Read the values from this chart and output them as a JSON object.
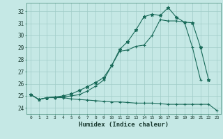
{
  "xlabel": "Humidex (Indice chaleur)",
  "xlim": [
    -0.5,
    23.5
  ],
  "ylim": [
    23.5,
    32.7
  ],
  "yticks": [
    24,
    25,
    26,
    27,
    28,
    29,
    30,
    31,
    32
  ],
  "xticks": [
    0,
    1,
    2,
    3,
    4,
    5,
    6,
    7,
    8,
    9,
    10,
    11,
    12,
    13,
    14,
    15,
    16,
    17,
    18,
    19,
    20,
    21,
    22,
    23
  ],
  "background_color": "#c5e8e5",
  "grid_color": "#a0ccc8",
  "line_color": "#1a6b5a",
  "line1_x": [
    0,
    1,
    2,
    3,
    4,
    5,
    6,
    7,
    8,
    9,
    10,
    11,
    12,
    13,
    14,
    15,
    16,
    17,
    18,
    19,
    20,
    21,
    22,
    23
  ],
  "line1_y": [
    25.1,
    24.7,
    24.85,
    24.85,
    24.85,
    24.75,
    24.7,
    24.65,
    24.6,
    24.55,
    24.5,
    24.5,
    24.45,
    24.4,
    24.4,
    24.4,
    24.35,
    24.3,
    24.3,
    24.3,
    24.3,
    24.3,
    24.3,
    23.8
  ],
  "line2_x": [
    0,
    1,
    2,
    3,
    4,
    5,
    6,
    7,
    8,
    9,
    10,
    11,
    12,
    13,
    14,
    15,
    16,
    17,
    18,
    19,
    20,
    21
  ],
  "line2_y": [
    25.1,
    24.7,
    24.85,
    24.9,
    24.9,
    25.0,
    25.1,
    25.4,
    25.8,
    26.3,
    27.5,
    28.7,
    28.8,
    29.1,
    29.2,
    30.0,
    31.3,
    31.2,
    31.2,
    31.1,
    29.0,
    26.3
  ],
  "line3_x": [
    0,
    1,
    2,
    3,
    4,
    5,
    6,
    7,
    8,
    9,
    10,
    11,
    12,
    13,
    14,
    15,
    16,
    17,
    18,
    19,
    20,
    21,
    22
  ],
  "line3_y": [
    25.1,
    24.7,
    24.85,
    24.9,
    25.0,
    25.15,
    25.45,
    25.75,
    26.1,
    26.5,
    27.5,
    28.85,
    29.5,
    30.45,
    31.55,
    31.75,
    31.65,
    32.3,
    31.5,
    31.1,
    31.05,
    29.0,
    26.3
  ]
}
